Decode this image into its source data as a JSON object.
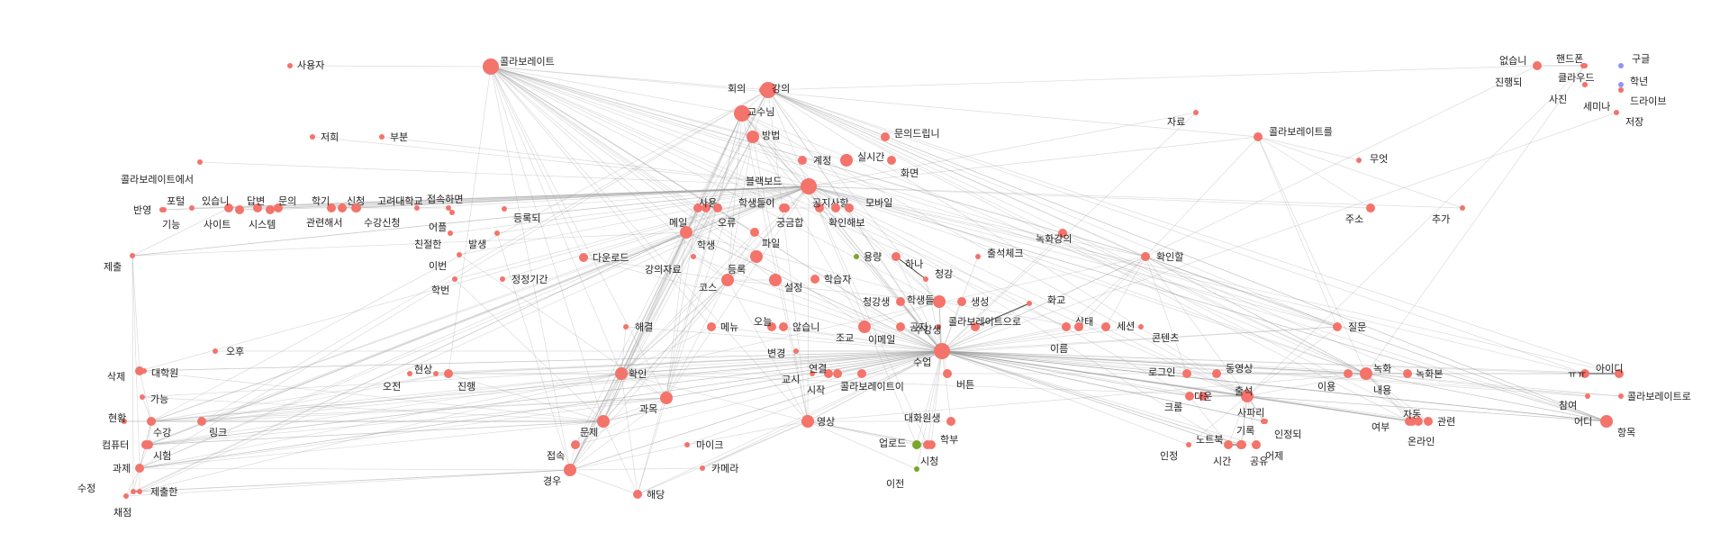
{
  "diagram": {
    "type": "network-graph",
    "colors": {
      "node": "#f4736b",
      "node_alt": "#7aa62a",
      "node_blue": "#8f96ee",
      "edge": "#9a9a9a",
      "label": "#222222"
    },
    "nodes": [
      {
        "id": "n1",
        "label": "콜라보레이트",
        "weight": 4
      },
      {
        "id": "n2",
        "label": "사용자",
        "weight": 1
      },
      {
        "id": "n3",
        "label": "저희",
        "weight": 1
      },
      {
        "id": "n4",
        "label": "부분",
        "weight": 1
      },
      {
        "id": "n5",
        "label": "콜라보레이트에서",
        "weight": 1
      },
      {
        "id": "n6",
        "label": "반영",
        "weight": 1
      },
      {
        "id": "n7",
        "label": "포털",
        "weight": 1
      },
      {
        "id": "n8",
        "label": "있습니",
        "weight": 2
      },
      {
        "id": "n9",
        "label": "답변",
        "weight": 2
      },
      {
        "id": "n10",
        "label": "문의",
        "weight": 2
      },
      {
        "id": "n11",
        "label": "학기",
        "weight": 2
      },
      {
        "id": "n12",
        "label": "신청",
        "weight": 2
      },
      {
        "id": "n13",
        "label": "고려대학교",
        "weight": 1
      },
      {
        "id": "n14",
        "label": "접속하면",
        "weight": 1
      },
      {
        "id": "n15",
        "label": "기능",
        "weight": 1
      },
      {
        "id": "n16",
        "label": "사이트",
        "weight": 2
      },
      {
        "id": "n17",
        "label": "시스템",
        "weight": 2
      },
      {
        "id": "n18",
        "label": "관련해서",
        "weight": 2
      },
      {
        "id": "n19",
        "label": "수강신청",
        "weight": 2
      },
      {
        "id": "n20",
        "label": "어플",
        "weight": 1
      },
      {
        "id": "n21",
        "label": "등록되",
        "weight": 1
      },
      {
        "id": "n22",
        "label": "친절한",
        "weight": 1
      },
      {
        "id": "n23",
        "label": "발생",
        "weight": 1
      },
      {
        "id": "n24",
        "label": "이번",
        "weight": 1
      },
      {
        "id": "n25",
        "label": "제출",
        "weight": 1
      },
      {
        "id": "n26",
        "label": "학번",
        "weight": 1
      },
      {
        "id": "n27",
        "label": "정정기간",
        "weight": 1
      },
      {
        "id": "n28",
        "label": "회의",
        "weight": 2
      },
      {
        "id": "n29",
        "label": "강의",
        "weight": 4
      },
      {
        "id": "n30",
        "label": "교수님",
        "weight": 4
      },
      {
        "id": "n31",
        "label": "방법",
        "weight": 3
      },
      {
        "id": "n32",
        "label": "문의드립니",
        "weight": 2
      },
      {
        "id": "n33",
        "label": "계정",
        "weight": 2
      },
      {
        "id": "n34",
        "label": "실시간",
        "weight": 3
      },
      {
        "id": "n35",
        "label": "화면",
        "weight": 2
      },
      {
        "id": "n36",
        "label": "블랙보드",
        "weight": 4
      },
      {
        "id": "n37",
        "label": "사용",
        "weight": 2
      },
      {
        "id": "n38",
        "label": "학생들이",
        "weight": 2
      },
      {
        "id": "n39",
        "label": "공지사항",
        "weight": 2
      },
      {
        "id": "n40",
        "label": "모바일",
        "weight": 2
      },
      {
        "id": "n41",
        "label": "메일",
        "weight": 2
      },
      {
        "id": "n42",
        "label": "오류",
        "weight": 2
      },
      {
        "id": "n43",
        "label": "궁금합",
        "weight": 2
      },
      {
        "id": "n44",
        "label": "확인해보",
        "weight": 2
      },
      {
        "id": "n45",
        "label": "학생",
        "weight": 3
      },
      {
        "id": "n46",
        "label": "파일",
        "weight": 2
      },
      {
        "id": "n47",
        "label": "용량",
        "weight": 1,
        "alt": true
      },
      {
        "id": "n48",
        "label": "다운로드",
        "weight": 2
      },
      {
        "id": "n49",
        "label": "강의자료",
        "weight": 1
      },
      {
        "id": "n50",
        "label": "등록",
        "weight": 3
      },
      {
        "id": "n51",
        "label": "학습자",
        "weight": 2
      },
      {
        "id": "n52",
        "label": "하나",
        "weight": 2
      },
      {
        "id": "n53",
        "label": "청강",
        "weight": 1
      },
      {
        "id": "n54",
        "label": "출석체크",
        "weight": 1
      },
      {
        "id": "n55",
        "label": "녹화강의",
        "weight": 2
      },
      {
        "id": "n56",
        "label": "확인할",
        "weight": 2
      },
      {
        "id": "n57",
        "label": "코스",
        "weight": 3
      },
      {
        "id": "n58",
        "label": "설정",
        "weight": 3
      },
      {
        "id": "n59",
        "label": "청강생",
        "weight": 2
      },
      {
        "id": "n60",
        "label": "학생들",
        "weight": 3
      },
      {
        "id": "n61",
        "label": "생성",
        "weight": 2
      },
      {
        "id": "n62",
        "label": "화교",
        "weight": 1
      },
      {
        "id": "n63",
        "label": "콜라보레이트으로",
        "weight": 2
      },
      {
        "id": "n64",
        "label": "상태",
        "weight": 2
      },
      {
        "id": "n65",
        "label": "세션",
        "weight": 2
      },
      {
        "id": "n66",
        "label": "콘텐츠",
        "weight": 1
      },
      {
        "id": "n67",
        "label": "해결",
        "weight": 1
      },
      {
        "id": "n68",
        "label": "메뉴",
        "weight": 2
      },
      {
        "id": "n69",
        "label": "오늘",
        "weight": 2
      },
      {
        "id": "n70",
        "label": "않습니",
        "weight": 2
      },
      {
        "id": "n71",
        "label": "조교",
        "weight": 3
      },
      {
        "id": "n72",
        "label": "이메일",
        "weight": 2
      },
      {
        "id": "n73",
        "label": "공지",
        "weight": 1
      },
      {
        "id": "n74",
        "label": "수강생",
        "weight": 3
      },
      {
        "id": "n75",
        "label": "이름",
        "weight": 2
      },
      {
        "id": "n76",
        "label": "질문",
        "weight": 2
      },
      {
        "id": "n77",
        "label": "오후",
        "weight": 1
      },
      {
        "id": "n78",
        "label": "삭제",
        "weight": 2
      },
      {
        "id": "n79",
        "label": "대학원",
        "weight": 1
      },
      {
        "id": "n80",
        "label": "가능",
        "weight": 1
      },
      {
        "id": "n81",
        "label": "현상",
        "weight": 1
      },
      {
        "id": "n82",
        "label": "오전",
        "weight": 1
      },
      {
        "id": "n83",
        "label": "진행",
        "weight": 2
      },
      {
        "id": "n84",
        "label": "확인",
        "weight": 3
      },
      {
        "id": "n85",
        "label": "변경",
        "weight": 1
      },
      {
        "id": "n86",
        "label": "교시",
        "weight": 1
      },
      {
        "id": "n87",
        "label": "연결",
        "weight": 2
      },
      {
        "id": "n88",
        "label": "시작",
        "weight": 2
      },
      {
        "id": "n89",
        "label": "콜라보레이트이",
        "weight": 2
      },
      {
        "id": "n90",
        "label": "수업",
        "weight": 4
      },
      {
        "id": "n91",
        "label": "버튼",
        "weight": 2
      },
      {
        "id": "n92",
        "label": "로그인",
        "weight": 2
      },
      {
        "id": "n93",
        "label": "동영상",
        "weight": 2
      },
      {
        "id": "n94",
        "label": "다운",
        "weight": 2
      },
      {
        "id": "n95",
        "label": "출석",
        "weight": 3
      },
      {
        "id": "n96",
        "label": "이용",
        "weight": 2
      },
      {
        "id": "n97",
        "label": "녹화",
        "weight": 3
      },
      {
        "id": "n98",
        "label": "녹화본",
        "weight": 2
      },
      {
        "id": "n99",
        "label": "내용",
        "weight": 2
      },
      {
        "id": "n100",
        "label": "ㅠㅠ",
        "weight": 2
      },
      {
        "id": "n101",
        "label": "아이디",
        "weight": 2
      },
      {
        "id": "n102",
        "label": "참여",
        "weight": 1
      },
      {
        "id": "n103",
        "label": "콜라보레이트로",
        "weight": 1
      },
      {
        "id": "n104",
        "label": "현황",
        "weight": 1
      },
      {
        "id": "n105",
        "label": "수강",
        "weight": 2
      },
      {
        "id": "n106",
        "label": "링크",
        "weight": 2
      },
      {
        "id": "n107",
        "label": "컴퓨터",
        "weight": 2
      },
      {
        "id": "n108",
        "label": "시험",
        "weight": 2
      },
      {
        "id": "n109",
        "label": "과제",
        "weight": 2
      },
      {
        "id": "n110",
        "label": "수정",
        "weight": 1
      },
      {
        "id": "n111",
        "label": "제출한",
        "weight": 1
      },
      {
        "id": "n112",
        "label": "채점",
        "weight": 1
      },
      {
        "id": "n113",
        "label": "과목",
        "weight": 3
      },
      {
        "id": "n114",
        "label": "문제",
        "weight": 3
      },
      {
        "id": "n115",
        "label": "접속",
        "weight": 2
      },
      {
        "id": "n116",
        "label": "경우",
        "weight": 3
      },
      {
        "id": "n117",
        "label": "해당",
        "weight": 2
      },
      {
        "id": "n118",
        "label": "마이크",
        "weight": 1
      },
      {
        "id": "n119",
        "label": "카메라",
        "weight": 1
      },
      {
        "id": "n120",
        "label": "영상",
        "weight": 3
      },
      {
        "id": "n121",
        "label": "대화원생",
        "weight": 2
      },
      {
        "id": "n122",
        "label": "업로드",
        "weight": 2,
        "alt": true
      },
      {
        "id": "n123",
        "label": "학부",
        "weight": 2
      },
      {
        "id": "n124",
        "label": "시청",
        "weight": 2
      },
      {
        "id": "n125",
        "label": "이전",
        "weight": 1,
        "alt": true
      },
      {
        "id": "n126",
        "label": "크롬",
        "weight": 2
      },
      {
        "id": "n127",
        "label": "사파리",
        "weight": 1
      },
      {
        "id": "n128",
        "label": "기록",
        "weight": 1
      },
      {
        "id": "n129",
        "label": "인정되",
        "weight": 1
      },
      {
        "id": "n130",
        "label": "노트북",
        "weight": 2
      },
      {
        "id": "n131",
        "label": "인정",
        "weight": 1
      },
      {
        "id": "n132",
        "label": "시간",
        "weight": 2
      },
      {
        "id": "n133",
        "label": "공유",
        "weight": 2
      },
      {
        "id": "n134",
        "label": "어제",
        "weight": 2
      },
      {
        "id": "n135",
        "label": "여부",
        "weight": 2
      },
      {
        "id": "n136",
        "label": "자동",
        "weight": 2
      },
      {
        "id": "n137",
        "label": "관련",
        "weight": 2
      },
      {
        "id": "n138",
        "label": "온라인",
        "weight": 2
      },
      {
        "id": "n139",
        "label": "어디",
        "weight": 2
      },
      {
        "id": "n140",
        "label": "항목",
        "weight": 3
      },
      {
        "id": "n141",
        "label": "자료",
        "weight": 1
      },
      {
        "id": "n142",
        "label": "콜라보레이트를",
        "weight": 2
      },
      {
        "id": "n143",
        "label": "무엇",
        "weight": 1
      },
      {
        "id": "n144",
        "label": "주소",
        "weight": 2
      },
      {
        "id": "n145",
        "label": "추가",
        "weight": 1
      },
      {
        "id": "n146",
        "label": "없습니",
        "weight": 2
      },
      {
        "id": "n147",
        "label": "핸드폰",
        "weight": 1
      },
      {
        "id": "n148",
        "label": "구글",
        "weight": 1,
        "blue": true
      },
      {
        "id": "n149",
        "label": "진행되",
        "weight": 1
      },
      {
        "id": "n150",
        "label": "클라우드",
        "weight": 1
      },
      {
        "id": "n151",
        "label": "학년",
        "weight": 1,
        "blue": true
      },
      {
        "id": "n152",
        "label": "사진",
        "weight": 1
      },
      {
        "id": "n153",
        "label": "세미나",
        "weight": 1,
        "blue": true
      },
      {
        "id": "n154",
        "label": "드라이브",
        "weight": 1
      },
      {
        "id": "n155",
        "label": "저장",
        "weight": 1
      }
    ]
  }
}
